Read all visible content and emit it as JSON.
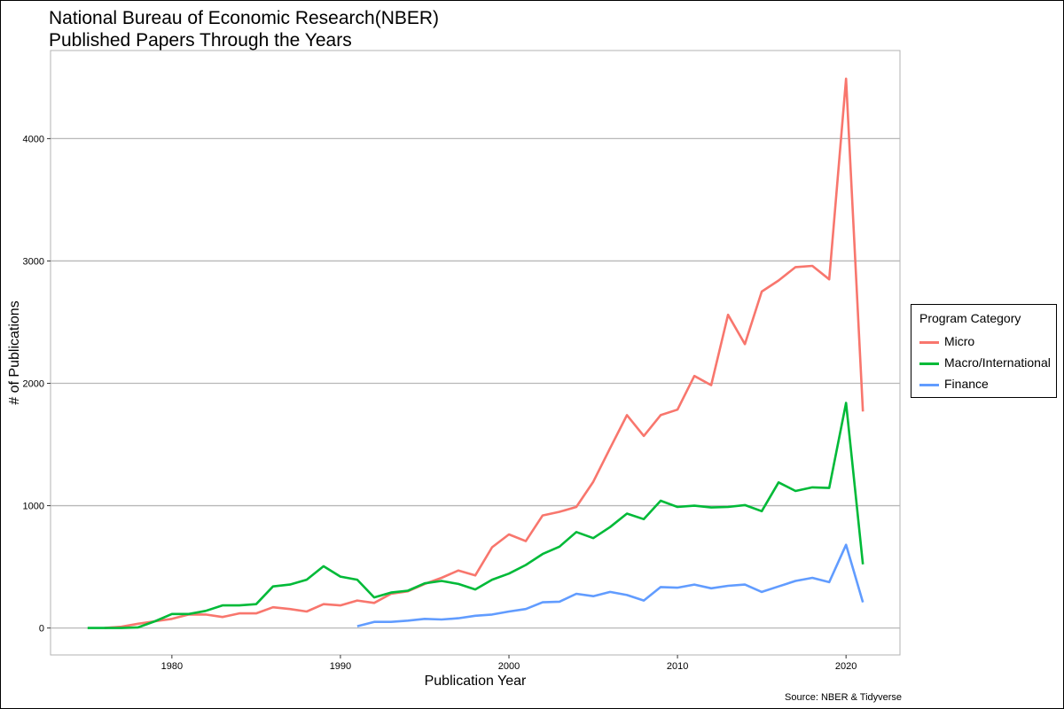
{
  "chart_data": {
    "type": "line",
    "title": "National Bureau of Economic Research(NBER)",
    "subtitle": "Published Papers Through the Years",
    "xlabel": "Publication Year",
    "ylabel": "# of Publications",
    "caption": "Source: NBER & Tidyverse",
    "xlim": [
      1972.8,
      2023.2
    ],
    "ylim": [
      -220,
      4720
    ],
    "x_ticks": [
      1980,
      1990,
      2000,
      2010,
      2020
    ],
    "y_ticks": [
      0,
      1000,
      2000,
      3000,
      4000
    ],
    "grid": "horizontal major",
    "legend": {
      "title": "Program Category",
      "position": "right"
    },
    "series": [
      {
        "name": "Micro",
        "color": "#F8766D",
        "x": [
          1976,
          1977,
          1978,
          1979,
          1980,
          1981,
          1982,
          1983,
          1984,
          1985,
          1986,
          1987,
          1988,
          1989,
          1990,
          1991,
          1992,
          1993,
          1994,
          1995,
          1996,
          1997,
          1998,
          1999,
          2000,
          2001,
          2002,
          2003,
          2004,
          2005,
          2006,
          2007,
          2008,
          2009,
          2010,
          2011,
          2012,
          2013,
          2014,
          2015,
          2016,
          2017,
          2018,
          2019,
          2020,
          2021
        ],
        "values": [
          0,
          10,
          35,
          55,
          75,
          110,
          110,
          90,
          120,
          120,
          170,
          155,
          135,
          195,
          185,
          225,
          205,
          280,
          300,
          360,
          410,
          470,
          430,
          660,
          765,
          710,
          920,
          950,
          990,
          1195,
          1470,
          1740,
          1570,
          1740,
          1785,
          2060,
          1985,
          2560,
          2320,
          2750,
          2840,
          2950,
          2960,
          2850,
          4490,
          1770
        ]
      },
      {
        "name": "Macro/International",
        "color": "#00BA38",
        "x": [
          1975,
          1976,
          1977,
          1978,
          1979,
          1980,
          1981,
          1982,
          1983,
          1984,
          1985,
          1986,
          1987,
          1988,
          1989,
          1990,
          1991,
          1992,
          1993,
          1994,
          1995,
          1996,
          1997,
          1998,
          1999,
          2000,
          2001,
          2002,
          2003,
          2004,
          2005,
          2006,
          2007,
          2008,
          2009,
          2010,
          2011,
          2012,
          2013,
          2014,
          2015,
          2016,
          2017,
          2018,
          2019,
          2020,
          2021
        ],
        "values": [
          0,
          0,
          0,
          5,
          55,
          115,
          115,
          140,
          185,
          185,
          195,
          340,
          355,
          395,
          505,
          420,
          395,
          250,
          290,
          305,
          365,
          385,
          360,
          315,
          395,
          445,
          515,
          605,
          665,
          785,
          735,
          825,
          935,
          890,
          1040,
          990,
          1000,
          985,
          990,
          1005,
          955,
          1190,
          1120,
          1150,
          1145,
          1840,
          520
        ]
      },
      {
        "name": "Finance",
        "color": "#619CFF",
        "x": [
          1991,
          1992,
          1993,
          1994,
          1995,
          1996,
          1997,
          1998,
          1999,
          2000,
          2001,
          2002,
          2003,
          2004,
          2005,
          2006,
          2007,
          2008,
          2009,
          2010,
          2011,
          2012,
          2013,
          2014,
          2015,
          2016,
          2017,
          2018,
          2019,
          2020,
          2021
        ],
        "values": [
          15,
          50,
          50,
          60,
          75,
          70,
          80,
          100,
          110,
          135,
          155,
          210,
          215,
          280,
          260,
          295,
          270,
          225,
          335,
          330,
          355,
          325,
          345,
          355,
          295,
          340,
          385,
          410,
          375,
          680,
          210
        ]
      }
    ]
  }
}
